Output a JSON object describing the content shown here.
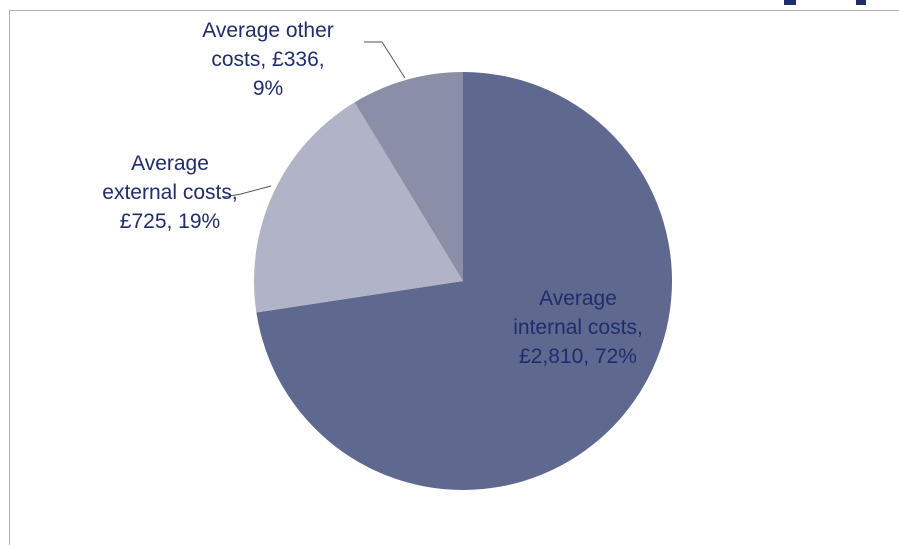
{
  "chart_data": {
    "type": "pie",
    "start_angle_deg": 0,
    "direction": "clockwise",
    "slices": [
      {
        "category": "Average internal costs",
        "value": 2810,
        "value_label": "£2,810",
        "percent_label": "72%",
        "label_lines": [
          "Average",
          "internal costs,",
          "£2,810, 72%"
        ],
        "color": "#5f688f",
        "text_color": "#1f2d6e"
      },
      {
        "category": "Average external costs",
        "value": 725,
        "value_label": "£725",
        "percent_label": "19%",
        "label_lines": [
          "Average",
          "external costs,",
          "£725, 19%"
        ],
        "color": "#b1b3c6",
        "text_color": "#1f2d6e"
      },
      {
        "category": "Average other costs",
        "value": 336,
        "value_label": "£336",
        "percent_label": "9%",
        "label_lines": [
          "Average other",
          "costs, £336,",
          "9%"
        ],
        "color": "#8a8ea6",
        "text_color": "#1f2d6e"
      }
    ],
    "colors": {
      "frame": "#b0b0b0",
      "leader": "#555555",
      "title_fragment": "#1f2d6e"
    }
  }
}
